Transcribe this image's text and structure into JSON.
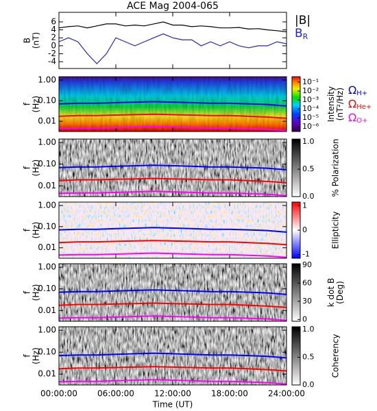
{
  "chart_data": [
    {
      "type": "line",
      "title": "ACE Mag 2004-065",
      "ylabel": [
        "B",
        "(nT)"
      ],
      "x": [
        0,
        1,
        2,
        3,
        4,
        5,
        6,
        7,
        8,
        9,
        10,
        11,
        12,
        13,
        14,
        15,
        16,
        17,
        18,
        19,
        20,
        21,
        22,
        23,
        24
      ],
      "xlim": [
        0,
        24
      ],
      "ylim": [
        -5.7,
        8.4
      ],
      "yticks": [
        -4,
        -2,
        0,
        2,
        4,
        6
      ],
      "series": [
        {
          "name": "|B|",
          "color": "#000000",
          "values": [
            4.5,
            4.8,
            5,
            4.5,
            5,
            5.5,
            5.5,
            5,
            5.2,
            5,
            5.5,
            6,
            5.2,
            5.2,
            4.8,
            5,
            4.8,
            4.5,
            4.5,
            4.6,
            4.2,
            4.3,
            4,
            3.8,
            3.5
          ]
        },
        {
          "name": "B",
          "subscript": "R",
          "color": "#2020e0",
          "values": [
            1,
            2,
            1,
            -2,
            -4.5,
            -2,
            2,
            1,
            0,
            1,
            2,
            3,
            2,
            1.5,
            1.5,
            0,
            1,
            0,
            1,
            0,
            -0.5,
            0,
            0,
            1,
            0.5
          ]
        }
      ]
    },
    {
      "type": "spectrogram",
      "ylabel": [
        "f",
        "(Hz)"
      ],
      "yscale": "log",
      "ylim": [
        0.0032,
        1.45
      ],
      "yticks": [
        {
          "value": 1,
          "label": "1.00"
        },
        {
          "value": 0.1,
          "label": "0.10"
        },
        0.01
      ],
      "xlim": [
        0,
        24
      ],
      "x": [
        0,
        2,
        4,
        6,
        8,
        10,
        12,
        14,
        16,
        18,
        20,
        22,
        24
      ],
      "colormap": "rainbow",
      "cscale": "log",
      "clim": [
        3e-07,
        0.4
      ],
      "cticks": [
        {
          "value": 0.1,
          "label": "10⁻¹"
        },
        {
          "value": 0.01,
          "label": "10⁻²"
        },
        {
          "value": 0.001,
          "label": "10⁻³"
        },
        {
          "value": 0.0001,
          "label": "10⁻⁴"
        },
        {
          "value": 1e-05,
          "label": "10⁻⁵"
        },
        {
          "value": 1e-06,
          "label": "10⁻⁶"
        }
      ],
      "colorbar_label": [
        "Intensity",
        "(nT²/Hz)"
      ],
      "legend": true,
      "series": [
        {
          "name": "Ω",
          "subscript": "H+",
          "color": "#0000ff",
          "values": [
            0.07,
            0.075,
            0.075,
            0.08,
            0.085,
            0.09,
            0.085,
            0.08,
            0.075,
            0.075,
            0.07,
            0.065,
            0.055
          ]
        },
        {
          "name": "Ω",
          "subscript": "He+",
          "color": "#ff0000",
          "values": [
            0.0175,
            0.019,
            0.019,
            0.02,
            0.021,
            0.022,
            0.021,
            0.02,
            0.019,
            0.019,
            0.0175,
            0.016,
            0.014
          ]
        },
        {
          "name": "Ω",
          "subscript": "O+",
          "color": "#ff00ff",
          "values": [
            0.0045,
            0.0047,
            0.0047,
            0.005,
            0.0053,
            0.0056,
            0.0053,
            0.005,
            0.0047,
            0.0047,
            0.0044,
            0.0041,
            0.0035
          ]
        }
      ]
    },
    {
      "type": "spectrogram",
      "ylabel": [
        "f",
        "(Hz)"
      ],
      "yscale": "log",
      "ylim": [
        0.0032,
        1.45
      ],
      "yticks": [
        {
          "value": 1,
          "label": "1.00"
        },
        {
          "value": 0.1,
          "label": "0.10"
        },
        0.01
      ],
      "xlim": [
        0,
        24
      ],
      "x": [
        0,
        2,
        4,
        6,
        8,
        10,
        12,
        14,
        16,
        18,
        20,
        22,
        24
      ],
      "colormap": "gray",
      "clim": [
        0,
        1.05
      ],
      "cticks": [
        {
          "value": 1,
          "label": "1.0"
        },
        0.5,
        {
          "value": 0,
          "label": "0.0"
        }
      ],
      "colorbar_label": [
        "% Polarization"
      ],
      "legend": false,
      "series": [
        {
          "color": "#0000ff",
          "values": [
            0.07,
            0.075,
            0.075,
            0.08,
            0.085,
            0.09,
            0.085,
            0.08,
            0.075,
            0.075,
            0.07,
            0.065,
            0.055
          ]
        },
        {
          "color": "#ff0000",
          "values": [
            0.0175,
            0.019,
            0.019,
            0.02,
            0.021,
            0.022,
            0.021,
            0.02,
            0.019,
            0.019,
            0.0175,
            0.016,
            0.014
          ]
        },
        {
          "color": "#ff00ff",
          "values": [
            0.0045,
            0.0047,
            0.0047,
            0.005,
            0.0053,
            0.0056,
            0.0053,
            0.005,
            0.0047,
            0.0047,
            0.0044,
            0.0041,
            0.0035
          ]
        }
      ]
    },
    {
      "type": "spectrogram",
      "ylabel": [
        "f",
        "(Hz)"
      ],
      "yscale": "log",
      "ylim": [
        0.0032,
        1.45
      ],
      "yticks": [
        {
          "value": 1,
          "label": "1.00"
        },
        {
          "value": 0.1,
          "label": "0.10"
        },
        0.01
      ],
      "xlim": [
        0,
        24
      ],
      "x": [
        0,
        2,
        4,
        6,
        8,
        10,
        12,
        14,
        16,
        18,
        20,
        22,
        24
      ],
      "colormap": "bwr",
      "clim": [
        -1.15,
        1.15
      ],
      "cticks": [
        1,
        0,
        -1
      ],
      "colorbar_label": [
        "Ellipticity"
      ],
      "legend": false,
      "series": [
        {
          "color": "#0000ff",
          "values": [
            0.07,
            0.075,
            0.075,
            0.08,
            0.085,
            0.09,
            0.085,
            0.08,
            0.075,
            0.075,
            0.07,
            0.065,
            0.055
          ]
        },
        {
          "color": "#ff0000",
          "values": [
            0.0175,
            0.019,
            0.019,
            0.02,
            0.021,
            0.022,
            0.021,
            0.02,
            0.019,
            0.019,
            0.0175,
            0.016,
            0.014
          ]
        },
        {
          "color": "#ff00ff",
          "values": [
            0.0045,
            0.0047,
            0.0047,
            0.005,
            0.0053,
            0.0056,
            0.0053,
            0.005,
            0.0047,
            0.0047,
            0.0044,
            0.0041,
            0.0035
          ]
        }
      ]
    },
    {
      "type": "spectrogram",
      "ylabel": [
        "f",
        "(Hz)"
      ],
      "yscale": "log",
      "ylim": [
        0.0032,
        1.45
      ],
      "yticks": [
        {
          "value": 1,
          "label": "1.00"
        },
        {
          "value": 0.1,
          "label": "0.10"
        },
        0.01
      ],
      "xlim": [
        0,
        24
      ],
      "x": [
        0,
        2,
        4,
        6,
        8,
        10,
        12,
        14,
        16,
        18,
        20,
        22,
        24
      ],
      "colormap": "gray",
      "clim": [
        -3,
        92
      ],
      "cticks": [
        90,
        60,
        30,
        0
      ],
      "colorbar_label": [
        "k dot B",
        "(Deg)"
      ],
      "legend": false,
      "series": [
        {
          "color": "#0000ff",
          "values": [
            0.07,
            0.075,
            0.075,
            0.08,
            0.085,
            0.09,
            0.085,
            0.08,
            0.075,
            0.075,
            0.07,
            0.065,
            0.055
          ]
        },
        {
          "color": "#ff0000",
          "values": [
            0.0175,
            0.019,
            0.019,
            0.02,
            0.021,
            0.022,
            0.021,
            0.02,
            0.019,
            0.019,
            0.0175,
            0.016,
            0.014
          ]
        },
        {
          "color": "#ff00ff",
          "values": [
            0.0045,
            0.0047,
            0.0047,
            0.005,
            0.0053,
            0.0056,
            0.0053,
            0.005,
            0.0047,
            0.0047,
            0.0044,
            0.0041,
            0.0035
          ]
        }
      ]
    },
    {
      "type": "spectrogram",
      "ylabel": [
        "f",
        "(Hz)"
      ],
      "yscale": "log",
      "ylim": [
        0.0032,
        1.45
      ],
      "yticks": [
        {
          "value": 1,
          "label": "1.00"
        },
        {
          "value": 0.1,
          "label": "0.10"
        },
        0.01
      ],
      "xlim": [
        0,
        24
      ],
      "x": [
        0,
        2,
        4,
        6,
        8,
        10,
        12,
        14,
        16,
        18,
        20,
        22,
        24
      ],
      "xticks": [
        {
          "value": 0,
          "label": "00:00:00"
        },
        {
          "value": 6,
          "label": "06:00:00"
        },
        {
          "value": 12,
          "label": "12:00:00"
        },
        {
          "value": 18,
          "label": "18:00:00"
        },
        {
          "value": 24,
          "label": "24:00:00"
        }
      ],
      "xlabel": "Time (UT)",
      "colormap": "gray",
      "clim": [
        0,
        1.05
      ],
      "cticks": [
        {
          "value": 1,
          "label": "1.0"
        },
        0.5,
        {
          "value": 0,
          "label": "0.0"
        }
      ],
      "colorbar_label": [
        "Coherency"
      ],
      "legend": false,
      "series": [
        {
          "color": "#0000ff",
          "values": [
            0.07,
            0.075,
            0.075,
            0.08,
            0.085,
            0.09,
            0.085,
            0.08,
            0.075,
            0.075,
            0.07,
            0.065,
            0.055
          ]
        },
        {
          "color": "#ff0000",
          "values": [
            0.0175,
            0.019,
            0.019,
            0.02,
            0.021,
            0.022,
            0.021,
            0.02,
            0.019,
            0.019,
            0.0175,
            0.016,
            0.014
          ]
        },
        {
          "color": "#ff00ff",
          "values": [
            0.0045,
            0.0047,
            0.0047,
            0.005,
            0.0053,
            0.0056,
            0.0053,
            0.005,
            0.0047,
            0.0047,
            0.0044,
            0.0041,
            0.0035
          ]
        }
      ]
    }
  ]
}
